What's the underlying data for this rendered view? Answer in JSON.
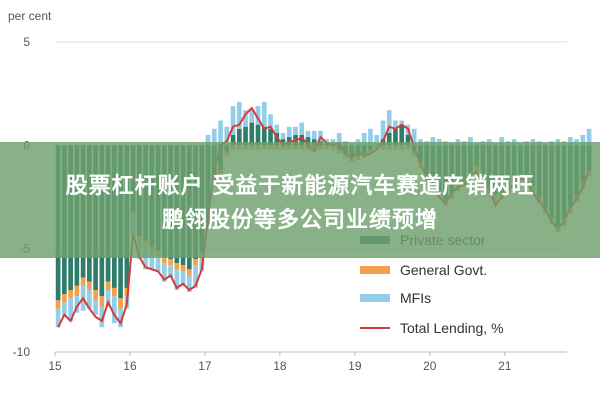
{
  "banner": {
    "line1": "股票杠杆账户 受益于新能源汽车赛道产销两旺",
    "line2": "鹏翎股份等多公司业绩预增"
  },
  "chart_data": {
    "type": "bar",
    "unit_label": "per cent",
    "yticks": [
      "5",
      "0",
      "-5",
      "-10"
    ],
    "xticks": [
      "15",
      "16",
      "17",
      "18",
      "19",
      "20",
      "21"
    ],
    "ylim": [
      -10,
      5
    ],
    "xlim": [
      2015,
      2021.83
    ],
    "grid": "horizontal",
    "legend_position": "bottom-right",
    "legend": [
      {
        "label": "Private sector",
        "color": "#2e7d6b"
      },
      {
        "label": "General Govt.",
        "color": "#f2a04a"
      },
      {
        "label": "MFIs",
        "color": "#93cde6"
      },
      {
        "label": "Total Lending, %",
        "color": "#d63a3a"
      }
    ],
    "series": [
      {
        "name": "Private sector",
        "values": [
          -7.5,
          -7.2,
          -7.0,
          -6.8,
          -6.4,
          -6.6,
          -7.0,
          -7.3,
          -6.6,
          -6.9,
          -7.4,
          -6.9,
          -3.2,
          -4.4,
          -4.6,
          -4.9,
          -5.1,
          -5.4,
          -5.5,
          -5.7,
          -5.8,
          -6.0,
          -5.5,
          -5.2,
          -3.8,
          -1.8,
          -1.2,
          -0.3,
          0.5,
          0.8,
          0.9,
          1.1,
          1.0,
          0.9,
          0.8,
          0.6,
          0.3,
          0.4,
          0.5,
          0.5,
          0.4,
          0.3,
          0.2,
          0.1,
          0.0,
          -0.2,
          -0.4,
          -0.6,
          -0.5,
          -0.4,
          -0.2,
          0.0,
          0.3,
          0.6,
          0.8,
          1.0,
          0.5,
          -0.3,
          -0.8,
          -1.4,
          -1.8,
          -2.2,
          -2.6,
          -2.3,
          -1.9,
          -1.7,
          -1.3,
          -1.0,
          -1.5,
          -2.0,
          -2.4,
          -2.3,
          -2.0,
          -1.7,
          -1.4,
          -1.6,
          -2.0,
          -2.5,
          -3.0,
          -3.5,
          -3.9,
          -3.6,
          -3.0,
          -2.4,
          -1.8,
          -1.2
        ]
      },
      {
        "name": "General Govt.",
        "values": [
          -0.4,
          -0.4,
          -0.4,
          -0.5,
          -0.4,
          -0.4,
          -0.5,
          -0.5,
          -0.4,
          -0.4,
          -0.5,
          -0.4,
          -0.3,
          -0.3,
          -0.3,
          -0.3,
          -0.3,
          -0.3,
          -0.3,
          -0.3,
          -0.3,
          -0.3,
          -0.3,
          -0.3,
          -0.2,
          -0.2,
          -0.2,
          -0.2,
          -0.2,
          -0.2,
          -0.2,
          -0.2,
          -0.2,
          -0.2,
          -0.2,
          -0.2,
          -0.2,
          -0.2,
          -0.2,
          -0.2,
          -0.2,
          -0.2,
          -0.2,
          -0.2,
          -0.2,
          -0.2,
          -0.2,
          -0.2,
          -0.2,
          -0.2,
          -0.2,
          -0.2,
          -0.2,
          -0.2,
          -0.2,
          -0.2,
          -0.2,
          -0.2,
          -0.3,
          -0.3,
          -0.3,
          -0.3,
          -0.3,
          -0.3,
          -0.3,
          -0.3,
          -0.3,
          -0.3,
          -0.3,
          -0.3,
          -0.3,
          -0.3,
          -0.3,
          -0.3,
          -0.3,
          -0.3,
          -0.3,
          -0.3,
          -0.3,
          -0.3,
          -0.3,
          -0.3,
          -0.3,
          -0.3,
          -0.3,
          -0.3
        ]
      },
      {
        "name": "MFIs",
        "values": [
          -0.9,
          -0.7,
          -1.1,
          -0.8,
          -1.2,
          -0.9,
          -0.7,
          -1.0,
          -0.8,
          -1.3,
          -0.9,
          -0.6,
          -0.9,
          -0.8,
          -1.1,
          -0.8,
          -0.7,
          -0.9,
          -0.6,
          -1.0,
          -0.7,
          -0.8,
          -1.1,
          -0.6,
          0.5,
          0.8,
          1.2,
          0.9,
          1.4,
          1.3,
          0.8,
          0.6,
          0.9,
          1.2,
          0.7,
          0.4,
          0.3,
          0.5,
          0.4,
          0.6,
          0.3,
          0.4,
          0.5,
          0.2,
          0.3,
          0.6,
          0.2,
          0.1,
          0.3,
          0.6,
          0.8,
          0.5,
          0.9,
          1.1,
          0.4,
          0.2,
          0.5,
          0.8,
          0.3,
          0.2,
          0.4,
          0.3,
          0.2,
          0.1,
          0.3,
          0.2,
          0.4,
          0.1,
          0.2,
          0.3,
          0.1,
          0.4,
          0.2,
          0.3,
          0.1,
          0.2,
          0.3,
          0.2,
          0.1,
          0.2,
          0.3,
          0.2,
          0.4,
          0.3,
          0.5,
          0.8
        ]
      },
      {
        "name": "Total Lending, %",
        "values": [
          -8.8,
          -8.2,
          -8.5,
          -7.8,
          -7.4,
          -7.9,
          -8.3,
          -8.5,
          -7.6,
          -8.2,
          -8.6,
          -7.7,
          -4.3,
          -5.4,
          -5.9,
          -6.0,
          -6.1,
          -6.5,
          -6.3,
          -6.9,
          -6.7,
          -7.0,
          -6.8,
          -6.0,
          -3.5,
          -1.2,
          0.0,
          0.2,
          0.9,
          1.0,
          1.5,
          1.8,
          1.3,
          0.8,
          0.9,
          0.4,
          0.0,
          0.2,
          0.2,
          0.4,
          0.0,
          -0.3,
          0.4,
          0.1,
          0.0,
          0.1,
          -0.4,
          -0.6,
          -0.3,
          -0.5,
          -0.4,
          -0.2,
          0.2,
          0.9,
          0.8,
          1.0,
          0.8,
          -0.1,
          -0.9,
          -1.5,
          -1.8,
          -2.5,
          -2.8,
          -2.3,
          -2.0,
          -1.9,
          -1.4,
          -1.3,
          -1.9,
          -2.1,
          -2.9,
          -2.5,
          -2.2,
          -1.8,
          -1.6,
          -1.7,
          -2.3,
          -2.7,
          -3.1,
          -3.7,
          -4.0,
          -3.7,
          -3.0,
          -2.6,
          -2.0,
          -1.2
        ]
      }
    ]
  }
}
